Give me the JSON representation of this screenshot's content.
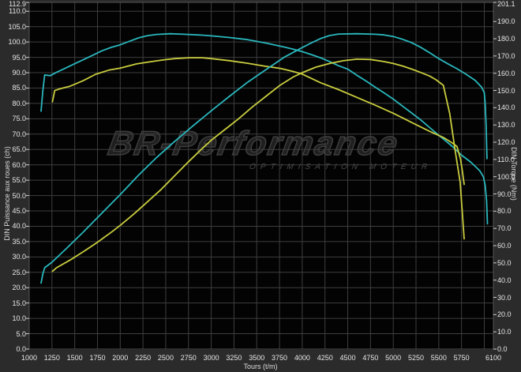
{
  "watermark": {
    "brand": "BR-Performance",
    "subtitle": "OPTIMISATION MOTEUR"
  },
  "chart_data": {
    "type": "line",
    "title": "",
    "xlabel": "Tours (t/m)",
    "ylabel_left": "DIN Puissance aux roues (ch)",
    "ylabel_right": "DIN Torque (Nm)",
    "x_range": [
      1000,
      6100
    ],
    "y_left_range": [
      0,
      112.9
    ],
    "y_right_range": [
      0,
      201.1
    ],
    "x_grid": [
      1000,
      1250,
      1500,
      1750,
      2000,
      2250,
      2500,
      2750,
      3000,
      3250,
      3500,
      3750,
      4000,
      4250,
      4500,
      4750,
      5000,
      5250,
      5500,
      5750,
      6000
    ],
    "x_ticks": [
      1000,
      1250,
      1500,
      1750,
      2000,
      2250,
      2500,
      2750,
      3000,
      3250,
      3500,
      3750,
      4000,
      4250,
      4500,
      4750,
      5000,
      5250,
      5500,
      5750,
      6100
    ],
    "y_left_ticks": [
      0,
      5,
      10,
      15,
      20,
      25,
      30,
      35,
      40,
      45,
      50,
      55,
      60,
      65,
      70,
      75,
      80,
      85,
      90,
      95,
      100,
      105,
      110,
      112.9
    ],
    "y_right_ticks": [
      0,
      10,
      20,
      30,
      40,
      50,
      60,
      70,
      80,
      90,
      100,
      110,
      120,
      130,
      140,
      150,
      160,
      170,
      180,
      190,
      201.1
    ],
    "grid": true,
    "legend": "none",
    "colors": {
      "grid": "#3e3e3e",
      "border": "#555555",
      "cyan": "#2ab7bd",
      "yellow": "#c9cd3e"
    },
    "series": [
      {
        "name": "torque-cyan",
        "color_key": "cyan",
        "axis": "right",
        "unit": "Nm",
        "peak": 182.9,
        "points": [
          [
            1130,
            138
          ],
          [
            1150,
            150
          ],
          [
            1170,
            159
          ],
          [
            1230,
            158.6
          ],
          [
            1300,
            160.5
          ],
          [
            1400,
            163
          ],
          [
            1500,
            165.5
          ],
          [
            1600,
            168
          ],
          [
            1700,
            170.5
          ],
          [
            1800,
            173
          ],
          [
            1900,
            175
          ],
          [
            2000,
            176.5
          ],
          [
            2100,
            178.5
          ],
          [
            2200,
            180.5
          ],
          [
            2300,
            181.8
          ],
          [
            2400,
            182.5
          ],
          [
            2550,
            182.9
          ],
          [
            2700,
            182.6
          ],
          [
            2900,
            182.1
          ],
          [
            3000,
            181.7
          ],
          [
            3200,
            180.7
          ],
          [
            3400,
            179.5
          ],
          [
            3600,
            177.5
          ],
          [
            3800,
            175.2
          ],
          [
            3900,
            174
          ],
          [
            4000,
            172.5
          ],
          [
            4100,
            170.8
          ],
          [
            4200,
            169
          ],
          [
            4300,
            166.8
          ],
          [
            4400,
            164.3
          ],
          [
            4500,
            162.4
          ],
          [
            4600,
            158.8
          ],
          [
            4700,
            155.5
          ],
          [
            4800,
            152
          ],
          [
            4900,
            148.6
          ],
          [
            5000,
            145
          ],
          [
            5100,
            141
          ],
          [
            5200,
            137
          ],
          [
            5300,
            133
          ],
          [
            5400,
            128.5
          ],
          [
            5500,
            124
          ],
          [
            5560,
            121.5
          ],
          [
            5650,
            117.5
          ],
          [
            5750,
            112.5
          ],
          [
            5850,
            108.5
          ],
          [
            5950,
            103.5
          ],
          [
            5990,
            100
          ],
          [
            6010,
            95
          ],
          [
            6025,
            86
          ],
          [
            6035,
            72.7
          ]
        ]
      },
      {
        "name": "torque-yellow",
        "color_key": "yellow",
        "axis": "right",
        "unit": "Nm",
        "peak": 169,
        "points": [
          [
            1255,
            143.4
          ],
          [
            1280,
            150
          ],
          [
            1340,
            151
          ],
          [
            1450,
            152.5
          ],
          [
            1590,
            155.6
          ],
          [
            1730,
            159.4
          ],
          [
            1875,
            161.8
          ],
          [
            2000,
            163
          ],
          [
            2180,
            165.4
          ],
          [
            2350,
            166.8
          ],
          [
            2470,
            167.7
          ],
          [
            2600,
            168.5
          ],
          [
            2760,
            169
          ],
          [
            2900,
            169
          ],
          [
            3000,
            168.5
          ],
          [
            3200,
            167.3
          ],
          [
            3400,
            165.8
          ],
          [
            3600,
            164
          ],
          [
            3760,
            162.8
          ],
          [
            3900,
            161
          ],
          [
            4000,
            159.5
          ],
          [
            4200,
            154.5
          ],
          [
            4400,
            150.5
          ],
          [
            4600,
            146
          ],
          [
            4800,
            141.5
          ],
          [
            5000,
            136.8
          ],
          [
            5200,
            131.5
          ],
          [
            5400,
            126.3
          ],
          [
            5560,
            122.5
          ],
          [
            5650,
            119.5
          ],
          [
            5700,
            117.5
          ],
          [
            5740,
            110
          ],
          [
            5760,
            103
          ],
          [
            5779,
            95.5
          ]
        ]
      },
      {
        "name": "power-cyan",
        "color_key": "cyan",
        "axis": "left",
        "unit": "ch",
        "peak": 102.7,
        "points": [
          [
            1130,
            21.5
          ],
          [
            1150,
            24.5
          ],
          [
            1170,
            26.5
          ],
          [
            1250,
            28.3
          ],
          [
            1400,
            32.5
          ],
          [
            1600,
            38.3
          ],
          [
            1800,
            44.3
          ],
          [
            2000,
            50.3
          ],
          [
            2200,
            56.6
          ],
          [
            2400,
            62.4
          ],
          [
            2600,
            67.7
          ],
          [
            2800,
            72.7
          ],
          [
            3000,
            77.6
          ],
          [
            3200,
            82.3
          ],
          [
            3400,
            86.9
          ],
          [
            3600,
            91
          ],
          [
            3800,
            95
          ],
          [
            4000,
            98.2
          ],
          [
            4100,
            99.7
          ],
          [
            4200,
            101.1
          ],
          [
            4300,
            102.1
          ],
          [
            4400,
            102.6
          ],
          [
            4600,
            102.7
          ],
          [
            4800,
            102.5
          ],
          [
            4900,
            102.3
          ],
          [
            5000,
            101.8
          ],
          [
            5100,
            100.9
          ],
          [
            5200,
            99.8
          ],
          [
            5300,
            98.3
          ],
          [
            5400,
            96.5
          ],
          [
            5500,
            94.6
          ],
          [
            5600,
            92.9
          ],
          [
            5700,
            91.3
          ],
          [
            5800,
            89.5
          ],
          [
            5900,
            87.5
          ],
          [
            5970,
            85.3
          ],
          [
            6000,
            83.5
          ],
          [
            6010,
            80
          ],
          [
            6020,
            73
          ],
          [
            6030,
            62
          ]
        ]
      },
      {
        "name": "power-yellow",
        "color_key": "yellow",
        "axis": "left",
        "unit": "ch",
        "peak": 94.4,
        "points": [
          [
            1255,
            25.3
          ],
          [
            1300,
            26.5
          ],
          [
            1450,
            29
          ],
          [
            1600,
            31.8
          ],
          [
            1750,
            34.8
          ],
          [
            1900,
            38
          ],
          [
            2000,
            40.3
          ],
          [
            2150,
            44
          ],
          [
            2300,
            48
          ],
          [
            2450,
            52
          ],
          [
            2600,
            56.5
          ],
          [
            2750,
            61
          ],
          [
            2900,
            65.3
          ],
          [
            3000,
            68
          ],
          [
            3150,
            71.5
          ],
          [
            3300,
            75
          ],
          [
            3450,
            78.8
          ],
          [
            3600,
            82.3
          ],
          [
            3750,
            85.8
          ],
          [
            3900,
            88.6
          ],
          [
            4000,
            90
          ],
          [
            4150,
            91.8
          ],
          [
            4300,
            93
          ],
          [
            4450,
            93.9
          ],
          [
            4600,
            94.4
          ],
          [
            4750,
            94.3
          ],
          [
            4900,
            93.6
          ],
          [
            5000,
            93
          ],
          [
            5100,
            92.2
          ],
          [
            5200,
            91.2
          ],
          [
            5300,
            90.1
          ],
          [
            5400,
            88.9
          ],
          [
            5470,
            87.7
          ],
          [
            5550,
            85.9
          ],
          [
            5620,
            76.7
          ],
          [
            5680,
            64.6
          ],
          [
            5735,
            54.4
          ],
          [
            5779,
            35.9
          ]
        ]
      }
    ]
  }
}
